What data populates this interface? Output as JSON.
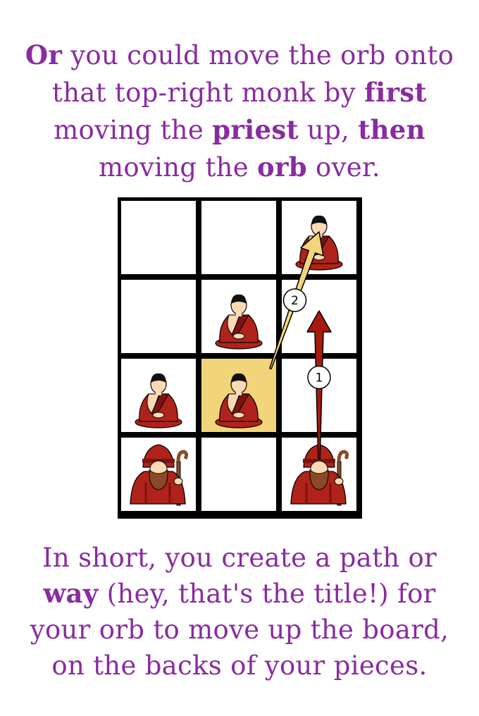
{
  "top_text": {
    "segments": [
      {
        "text": "Or",
        "bold": true
      },
      {
        "text": " you could move the orb onto",
        "bold": false
      },
      {
        "text": "\n",
        "bold": false
      },
      {
        "text": "that top-right monk by ",
        "bold": false
      },
      {
        "text": "first",
        "bold": true
      },
      {
        "text": "\n",
        "bold": false
      },
      {
        "text": "moving the ",
        "bold": false
      },
      {
        "text": "priest",
        "bold": true
      },
      {
        "text": " up, ",
        "bold": false
      },
      {
        "text": "then",
        "bold": true
      },
      {
        "text": "\n",
        "bold": false
      },
      {
        "text": "moving the ",
        "bold": false
      },
      {
        "text": "orb",
        "bold": true
      },
      {
        "text": " over.",
        "bold": false
      }
    ]
  },
  "board": {
    "columns": 3,
    "rows": 4,
    "cells": [
      {
        "row": 0,
        "col": 0,
        "piece": null,
        "highlight": false
      },
      {
        "row": 0,
        "col": 1,
        "piece": null,
        "highlight": false
      },
      {
        "row": 0,
        "col": 2,
        "piece": "monk",
        "highlight": false
      },
      {
        "row": 1,
        "col": 0,
        "piece": null,
        "highlight": false
      },
      {
        "row": 1,
        "col": 1,
        "piece": "monk",
        "highlight": false
      },
      {
        "row": 1,
        "col": 2,
        "piece": null,
        "highlight": false
      },
      {
        "row": 2,
        "col": 0,
        "piece": "monk",
        "highlight": false
      },
      {
        "row": 2,
        "col": 1,
        "piece": "monk",
        "highlight": true
      },
      {
        "row": 2,
        "col": 2,
        "piece": null,
        "highlight": false
      },
      {
        "row": 3,
        "col": 0,
        "piece": "priest",
        "highlight": false
      },
      {
        "row": 3,
        "col": 1,
        "piece": null,
        "highlight": false
      },
      {
        "row": 3,
        "col": 2,
        "piece": "priest",
        "highlight": false
      }
    ],
    "arrows": [
      {
        "label": "1",
        "color": "#a81a10",
        "from": {
          "row": 3,
          "col": 2
        },
        "to": {
          "row": 1,
          "col": 2
        }
      },
      {
        "label": "2",
        "color": "#f2d57a",
        "from": {
          "row": 2,
          "col": 1
        },
        "to": {
          "row": 0,
          "col": 2
        }
      }
    ],
    "colors": {
      "grid": "#000000",
      "cell": "#ffffff",
      "highlight": "#f2d57a",
      "robe": "#b0231a",
      "robe_dark": "#7a140e",
      "skin": "#fbd9b4",
      "hair": "#111111",
      "beard": "#8b4a26"
    }
  },
  "bottom_text": {
    "segments": [
      {
        "text": "In short, you create a path or",
        "bold": false
      },
      {
        "text": "\n",
        "bold": false
      },
      {
        "text": "way",
        "bold": true
      },
      {
        "text": " (hey, that's the title!) for",
        "bold": false
      },
      {
        "text": "\n",
        "bold": false
      },
      {
        "text": "your orb to move up the board,",
        "bold": false
      },
      {
        "text": "\n",
        "bold": false
      },
      {
        "text": "on the backs of your pieces.",
        "bold": false
      }
    ]
  }
}
